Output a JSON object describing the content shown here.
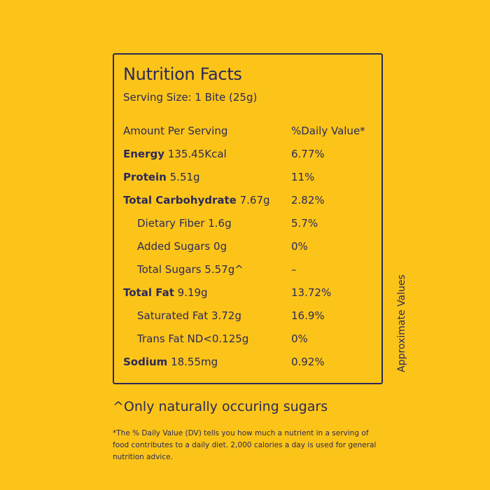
{
  "panel": {
    "title": "Nutrition Facts",
    "serving": "Serving Size: 1 Bite (25g)",
    "header": {
      "left": "Amount Per Serving",
      "right": "%Daily Value*"
    },
    "rows": [
      {
        "bold": "Energy",
        "rest": " 135.45Kcal",
        "dv": "6.77%"
      },
      {
        "bold": "Protein",
        "rest": " 5.51g",
        "dv": "11%"
      },
      {
        "bold": "Total Carbohydrate",
        "rest": " 7.67g",
        "dv": "2.82%"
      },
      {
        "bold": "",
        "rest": "Dietary Fiber 1.6g",
        "dv": "5.7%"
      },
      {
        "bold": "",
        "rest": "Added Sugars 0g",
        "dv": "0%"
      },
      {
        "bold": "",
        "rest": "Total Sugars 5.57g^",
        "dv": "–"
      },
      {
        "bold": "Total Fat",
        "rest": " 9.19g",
        "dv": "13.72%"
      },
      {
        "bold": "",
        "rest": "Saturated Fat 3.72g",
        "dv": "16.9%"
      },
      {
        "bold": "",
        "rest": "Trans Fat ND<0.125g",
        "dv": "0%"
      },
      {
        "bold": "Sodium",
        "rest": " 18.55mg",
        "dv": "0.92%"
      }
    ]
  },
  "side_note": "Approximate Values",
  "footnotes": {
    "sugars": "^Only naturally occuring sugars",
    "daily_value": "*The % Daily Value (DV) tells you how much a nutrient in a serving of food contributes to a daily diet. 2,000 calories a day is used for general nutrition advice."
  },
  "colors": {
    "background": "#FCC419",
    "ink": "#2B2A57"
  }
}
